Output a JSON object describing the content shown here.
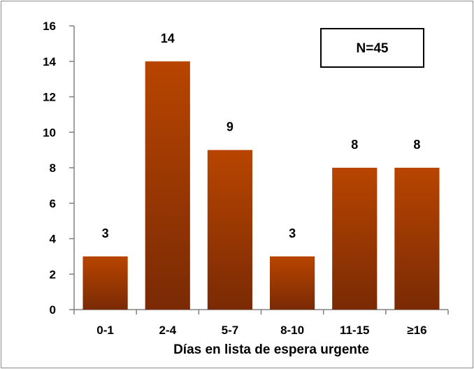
{
  "chart_data": {
    "type": "bar",
    "categories": [
      "0-1",
      "2-4",
      "5-7",
      "8-10",
      "11-15",
      "≥16"
    ],
    "values": [
      3,
      14,
      9,
      3,
      8,
      8
    ],
    "data_labels": [
      "3",
      "14",
      "9",
      "3",
      "8",
      "8"
    ],
    "xlabel": "Días en lista de espera urgente",
    "ylabel": "",
    "ylim": [
      0,
      16
    ],
    "yticks": [
      0,
      2,
      4,
      6,
      8,
      10,
      12,
      14,
      16
    ],
    "grid": false,
    "annotation": "N=45",
    "bar_color_top": "#b84500",
    "bar_color_bottom": "#7a2a05"
  }
}
